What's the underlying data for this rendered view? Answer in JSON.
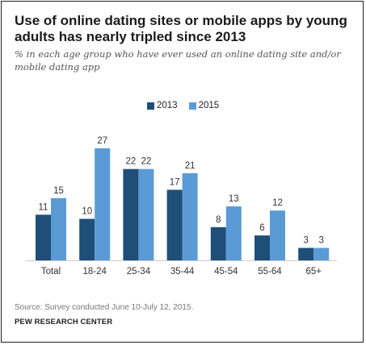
{
  "title": "Use of online dating sites or mobile apps by young adults has nearly tripled since 2013",
  "subtitle": "% in each age group who have ever used an online dating site and/or mobile dating app",
  "legend": [
    {
      "label": "2013",
      "color": "#1f4e79"
    },
    {
      "label": "2015",
      "color": "#5b9bd5"
    }
  ],
  "source": "Source: Survey conducted June 10-July 12, 2015.",
  "org": "PEW RESEARCH CENTER",
  "chart_data": {
    "type": "bar",
    "title": "Use of online dating sites or mobile apps by young adults has nearly tripled since 2013",
    "subtitle": "% in each age group who have ever used an online dating site and/or mobile dating app",
    "categories": [
      "Total",
      "18-24",
      "25-34",
      "35-44",
      "45-54",
      "55-64",
      "65+"
    ],
    "series": [
      {
        "name": "2013",
        "color": "#1f4e79",
        "values": [
          11,
          10,
          22,
          17,
          8,
          6,
          3
        ]
      },
      {
        "name": "2015",
        "color": "#5b9bd5",
        "values": [
          15,
          27,
          22,
          21,
          13,
          12,
          3
        ]
      }
    ],
    "ylim": [
      0,
      27
    ],
    "grid": false,
    "legend_position": "top-center",
    "xlabel": "",
    "ylabel": ""
  }
}
